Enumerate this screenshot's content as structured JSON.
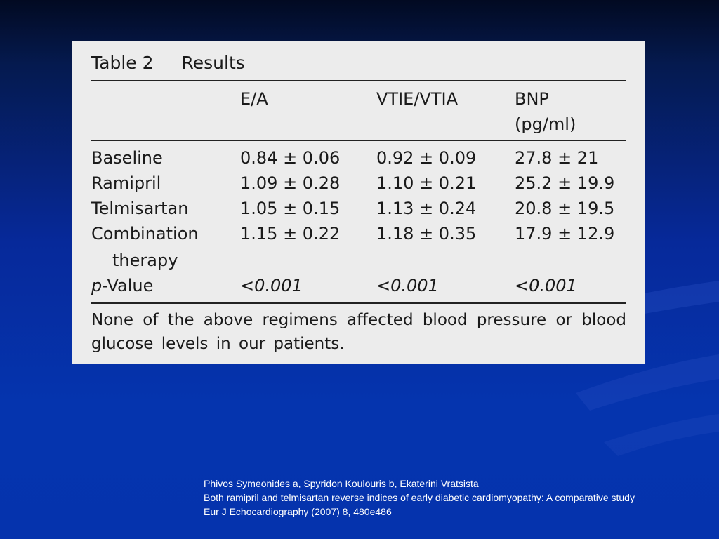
{
  "table": {
    "label": "Table 2",
    "title": "Results",
    "headers": [
      "",
      "E/A",
      "VTIE/VTIA",
      "BNP"
    ],
    "header_sub": [
      "",
      "",
      "",
      "(pg/ml)"
    ],
    "rows": [
      {
        "label": "Baseline",
        "ea": "0.84 ± 0.06",
        "vti": "0.92 ± 0.09",
        "bnp": "27.8 ± 21"
      },
      {
        "label": "Ramipril",
        "ea": "1.09 ± 0.28",
        "vti": "1.10 ± 0.21",
        "bnp": "25.2 ± 19.9"
      },
      {
        "label": "Telmisartan",
        "ea": "1.05 ± 0.15",
        "vti": "1.13 ± 0.24",
        "bnp": "20.8 ± 19.5"
      },
      {
        "label": "Combination",
        "label_cont": "therapy",
        "ea": "1.15 ± 0.22",
        "vti": "1.18 ± 0.35",
        "bnp": "17.9 ± 12.9"
      }
    ],
    "pvalue": {
      "label_p": "p",
      "label_rest": "-Value",
      "ea": "<0.001",
      "vti": "<0.001",
      "bnp": "<0.001"
    },
    "note": "None of the above regimens affected blood pressure or blood glucose levels in our patients."
  },
  "citation": {
    "authors": "Phivos Symeonides a,  Spyridon Koulouris b, Ekaterini Vratsista",
    "title": "Both ramipril and telmisartan reverse indices of  early diabetic cardiomyopathy: A comparative study",
    "journal": "Eur J Echocardiography (2007) 8, 480e486"
  }
}
